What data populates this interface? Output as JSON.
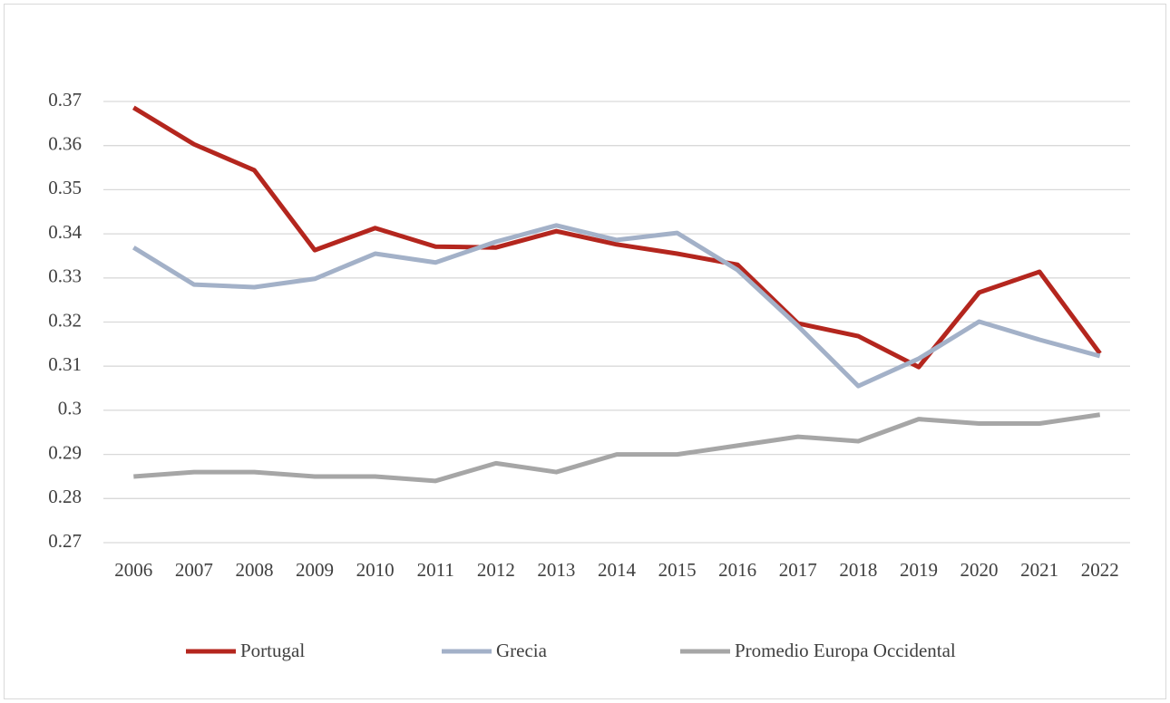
{
  "chart_data": {
    "type": "line",
    "categories": [
      "2006",
      "2007",
      "2008",
      "2009",
      "2010",
      "2011",
      "2012",
      "2013",
      "2014",
      "2015",
      "2016",
      "2017",
      "2018",
      "2019",
      "2020",
      "2021",
      "2022"
    ],
    "series": [
      {
        "name": "Portugal",
        "color": "#b4261e",
        "values": [
          0.3686,
          0.3603,
          0.3544,
          0.3363,
          0.3413,
          0.3371,
          0.3369,
          0.3406,
          0.3376,
          0.3355,
          0.333,
          0.3197,
          0.3168,
          0.3098,
          0.3267,
          0.3314,
          0.3129
        ]
      },
      {
        "name": "Grecia",
        "color": "#a3b1c8",
        "values": [
          0.3369,
          0.3285,
          0.3279,
          0.3298,
          0.3355,
          0.3335,
          0.3382,
          0.3419,
          0.3386,
          0.3402,
          0.3318,
          0.3191,
          0.3055,
          0.3117,
          0.3201,
          0.316,
          0.3123
        ]
      },
      {
        "name": "Promedio Europa Occidental",
        "color": "#a6a6a6",
        "values": [
          0.285,
          0.286,
          0.286,
          0.285,
          0.285,
          0.284,
          0.288,
          0.286,
          0.29,
          0.29,
          0.292,
          0.294,
          0.293,
          0.298,
          0.297,
          0.297,
          0.299
        ]
      }
    ],
    "ylim": [
      0.27,
      0.37
    ],
    "yticks": [
      0.27,
      0.28,
      0.29,
      0.3,
      0.31,
      0.32,
      0.33,
      0.34,
      0.35,
      0.36,
      0.37
    ],
    "grid": true,
    "legend": "bottom"
  }
}
